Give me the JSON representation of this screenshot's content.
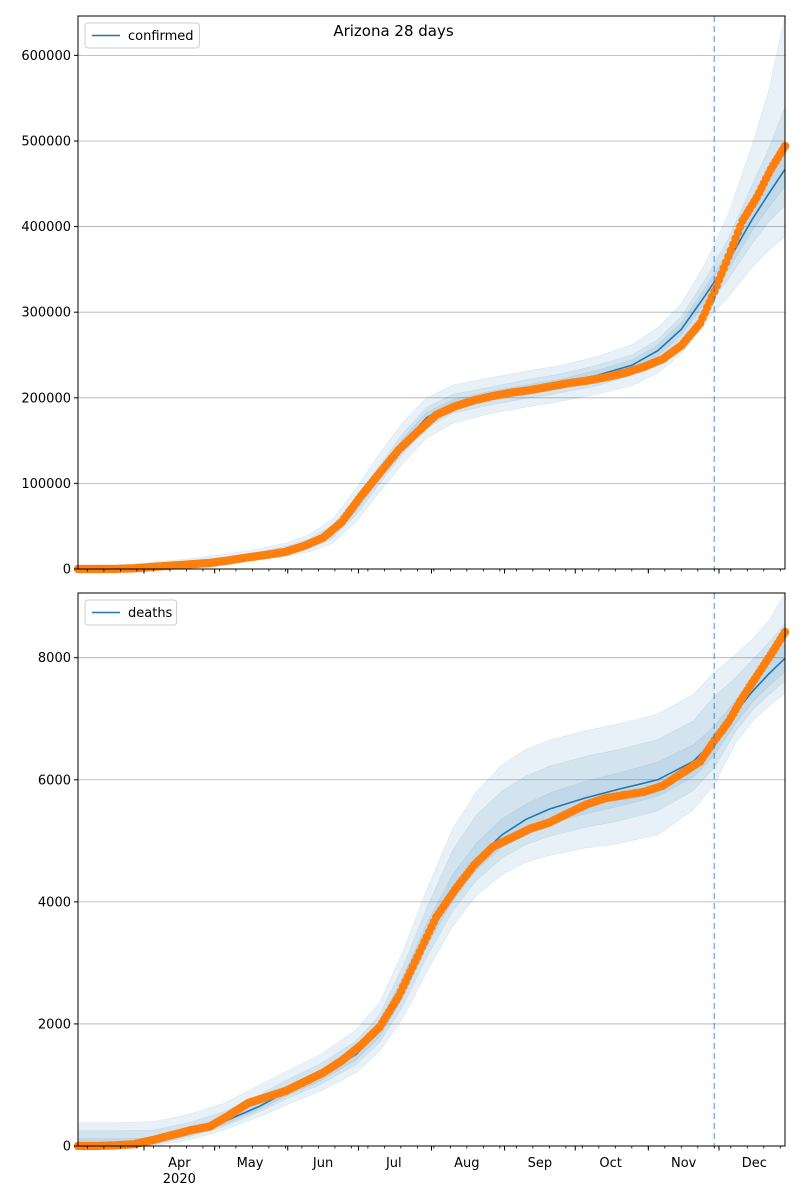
{
  "chart_data": [
    {
      "type": "line",
      "title": "Arizona 28 days",
      "xlabel": "",
      "ylabel": "",
      "x_range": [
        "2020-03-04",
        "2020-12-29"
      ],
      "ylim": [
        0,
        646000
      ],
      "yticks": [
        0,
        100000,
        200000,
        300000,
        400000,
        500000,
        600000
      ],
      "ytick_labels": [
        "0",
        "100000",
        "200000",
        "300000",
        "400000",
        "500000",
        "600000"
      ],
      "grid": "horizontal",
      "legend": {
        "placement": "top-left",
        "entries": [
          "confirmed"
        ]
      },
      "forecast_start": "2020-11-29",
      "model_x": [
        "2020-03-04",
        "2020-03-20",
        "2020-04-05",
        "2020-04-20",
        "2020-05-05",
        "2020-05-20",
        "2020-06-01",
        "2020-06-10",
        "2020-06-20",
        "2020-06-30",
        "2020-07-10",
        "2020-07-20",
        "2020-07-30",
        "2020-08-10",
        "2020-08-25",
        "2020-09-10",
        "2020-09-25",
        "2020-10-10",
        "2020-10-25",
        "2020-11-05",
        "2020-11-15",
        "2020-11-25",
        "2020-12-05",
        "2020-12-15",
        "2020-12-22",
        "2020-12-29"
      ],
      "model_y": [
        500,
        1000,
        3500,
        6500,
        11000,
        16500,
        22000,
        29000,
        43000,
        73000,
        110000,
        147000,
        177000,
        193000,
        202000,
        210000,
        217000,
        226000,
        238000,
        255000,
        280000,
        319000,
        360000,
        408000,
        438000,
        467000
      ],
      "bands": [
        {
          "name": "90%",
          "lower": [
            0,
            0,
            500,
            2500,
            6000,
            11000,
            15000,
            20000,
            30000,
            55000,
            90000,
            124000,
            153000,
            170000,
            181000,
            189000,
            196000,
            204000,
            214000,
            229000,
            251000,
            287000,
            318000,
            352000,
            372000,
            388000
          ],
          "upper": [
            3500,
            4500,
            8000,
            12000,
            17000,
            23500,
            31000,
            40000,
            58000,
            94000,
            135000,
            172000,
            200000,
            215000,
            223000,
            231000,
            238000,
            248000,
            262000,
            282000,
            310000,
            356000,
            415000,
            495000,
            558000,
            646000
          ]
        },
        {
          "name": "75%",
          "lower": [
            0,
            200,
            1500,
            4000,
            8000,
            13500,
            18000,
            24000,
            36000,
            63000,
            100000,
            135000,
            165000,
            182000,
            191000,
            199000,
            206000,
            214000,
            226000,
            242000,
            266000,
            303000,
            339000,
            380000,
            405000,
            425000
          ],
          "upper": [
            2500,
            3000,
            6000,
            9500,
            14000,
            20000,
            27000,
            35000,
            51000,
            84000,
            121000,
            159000,
            189000,
            204000,
            212000,
            221000,
            228000,
            238000,
            250000,
            268000,
            295000,
            338000,
            386000,
            448000,
            490000,
            540000
          ]
        },
        {
          "name": "50%",
          "lower": [
            100,
            600,
            2500,
            5200,
            9500,
            15000,
            20000,
            26500,
            39500,
            68000,
            105000,
            141000,
            171000,
            188000,
            197000,
            205000,
            212000,
            221000,
            233000,
            249000,
            273000,
            311000,
            350000,
            395000,
            422000,
            447000
          ],
          "upper": [
            1500,
            1800,
            4800,
            8000,
            12500,
            18000,
            24500,
            32000,
            47000,
            78000,
            115000,
            153000,
            183000,
            198000,
            207000,
            215000,
            222000,
            232000,
            244000,
            262000,
            288000,
            328000,
            372000,
            425000,
            458000,
            493000
          ]
        }
      ],
      "observed": {
        "x": [
          "2020-03-04",
          "2020-03-12",
          "2020-03-20",
          "2020-03-28",
          "2020-04-05",
          "2020-04-13",
          "2020-04-21",
          "2020-04-29",
          "2020-05-07",
          "2020-05-15",
          "2020-05-23",
          "2020-05-31",
          "2020-06-08",
          "2020-06-16",
          "2020-06-24",
          "2020-07-02",
          "2020-07-10",
          "2020-07-18",
          "2020-07-26",
          "2020-08-03",
          "2020-08-11",
          "2020-08-19",
          "2020-08-27",
          "2020-09-04",
          "2020-09-12",
          "2020-09-20",
          "2020-09-28",
          "2020-10-06",
          "2020-10-14",
          "2020-10-22",
          "2020-10-30",
          "2020-11-07",
          "2020-11-15",
          "2020-11-23",
          "2020-11-29",
          "2020-12-05",
          "2020-12-11",
          "2020-12-17",
          "2020-12-23",
          "2020-12-29"
        ],
        "y": [
          0,
          20,
          150,
          800,
          2500,
          4000,
          5500,
          7000,
          10000,
          13500,
          16500,
          20000,
          27000,
          36500,
          55000,
          85000,
          112000,
          139000,
          160000,
          180000,
          190000,
          197000,
          202000,
          206000,
          209000,
          213000,
          217000,
          220000,
          224000,
          229000,
          236000,
          245000,
          261000,
          287000,
          324000,
          365000,
          407000,
          434000,
          467000,
          494000
        ]
      }
    },
    {
      "type": "line",
      "title": "",
      "xlabel": "",
      "ylabel": "",
      "x_range": [
        "2020-03-04",
        "2020-12-29"
      ],
      "ylim": [
        0,
        9060
      ],
      "yticks": [
        0,
        2000,
        4000,
        6000,
        8000
      ],
      "ytick_labels": [
        "0",
        "2000",
        "4000",
        "6000",
        "8000"
      ],
      "xticks": [
        "2020-04-01",
        "2020-05-01",
        "2020-06-01",
        "2020-07-01",
        "2020-08-01",
        "2020-09-01",
        "2020-10-01",
        "2020-11-01",
        "2020-12-01"
      ],
      "xtick_labels": [
        "Apr",
        "May",
        "Jun",
        "Jul",
        "Aug",
        "Sep",
        "Oct",
        "Nov",
        "Dec"
      ],
      "xtick_year_label": "2020",
      "grid": "horizontal",
      "legend": {
        "placement": "top-left",
        "entries": [
          "deaths"
        ]
      },
      "forecast_start": "2020-11-29",
      "model_x": [
        "2020-03-04",
        "2020-03-20",
        "2020-04-05",
        "2020-04-20",
        "2020-05-05",
        "2020-05-20",
        "2020-06-01",
        "2020-06-15",
        "2020-06-30",
        "2020-07-10",
        "2020-07-20",
        "2020-07-30",
        "2020-08-10",
        "2020-08-20",
        "2020-08-31",
        "2020-09-10",
        "2020-09-20",
        "2020-10-05",
        "2020-10-20",
        "2020-11-05",
        "2020-11-20",
        "2020-11-29",
        "2020-12-08",
        "2020-12-15",
        "2020-12-22",
        "2020-12-29"
      ],
      "model_y": [
        0,
        0,
        70,
        230,
        400,
        650,
        900,
        1150,
        1500,
        1900,
        2600,
        3450,
        4200,
        4700,
        5100,
        5350,
        5520,
        5700,
        5850,
        6000,
        6300,
        6640,
        7100,
        7440,
        7730,
        7990
      ],
      "bands": [
        {
          "name": "90%",
          "lower": [
            0,
            0,
            0,
            100,
            260,
            480,
            680,
            900,
            1200,
            1550,
            2100,
            2850,
            3600,
            4100,
            4450,
            4650,
            4760,
            4880,
            4960,
            5100,
            5500,
            5920,
            6600,
            6950,
            7200,
            7420
          ],
          "upper": [
            380,
            380,
            400,
            520,
            700,
            1000,
            1230,
            1500,
            1900,
            2350,
            3200,
            4200,
            5200,
            5800,
            6250,
            6500,
            6650,
            6800,
            6920,
            7080,
            7400,
            7760,
            8050,
            8300,
            8600,
            9060
          ]
        },
        {
          "name": "75%",
          "lower": [
            0,
            0,
            20,
            150,
            320,
            560,
            780,
            1010,
            1330,
            1700,
            2300,
            3100,
            3850,
            4350,
            4720,
            4940,
            5070,
            5220,
            5330,
            5490,
            5820,
            6200,
            6790,
            7130,
            7390,
            7620
          ],
          "upper": [
            250,
            250,
            260,
            380,
            560,
            840,
            1090,
            1350,
            1720,
            2150,
            2950,
            3900,
            4850,
            5420,
            5820,
            6060,
            6220,
            6380,
            6500,
            6660,
            6960,
            7370,
            7670,
            7960,
            8240,
            8560
          ]
        },
        {
          "name": "50%",
          "lower": [
            0,
            0,
            40,
            180,
            350,
            600,
            830,
            1070,
            1410,
            1790,
            2440,
            3270,
            4020,
            4520,
            4900,
            5130,
            5280,
            5440,
            5570,
            5730,
            6040,
            6400,
            6920,
            7260,
            7530,
            7770
          ],
          "upper": [
            120,
            120,
            130,
            290,
            460,
            720,
            980,
            1240,
            1600,
            2020,
            2780,
            3650,
            4450,
            4960,
            5360,
            5600,
            5780,
            5970,
            6120,
            6290,
            6570,
            6880,
            7300,
            7640,
            7940,
            8240
          ]
        }
      ],
      "observed": {
        "x": [
          "2020-03-04",
          "2020-03-12",
          "2020-03-20",
          "2020-03-28",
          "2020-04-05",
          "2020-04-13",
          "2020-04-21",
          "2020-04-29",
          "2020-05-07",
          "2020-05-15",
          "2020-05-23",
          "2020-05-31",
          "2020-06-08",
          "2020-06-16",
          "2020-06-24",
          "2020-07-02",
          "2020-07-10",
          "2020-07-18",
          "2020-07-26",
          "2020-08-03",
          "2020-08-11",
          "2020-08-19",
          "2020-08-27",
          "2020-09-04",
          "2020-09-12",
          "2020-09-20",
          "2020-09-28",
          "2020-10-06",
          "2020-10-14",
          "2020-10-22",
          "2020-10-30",
          "2020-11-07",
          "2020-11-15",
          "2020-11-23",
          "2020-11-29",
          "2020-12-05",
          "2020-12-11",
          "2020-12-17",
          "2020-12-23",
          "2020-12-29"
        ],
        "y": [
          0,
          0,
          10,
          30,
          100,
          180,
          260,
          320,
          500,
          700,
          800,
          900,
          1050,
          1200,
          1400,
          1650,
          1950,
          2450,
          3100,
          3750,
          4200,
          4600,
          4900,
          5050,
          5200,
          5300,
          5450,
          5600,
          5700,
          5750,
          5800,
          5900,
          6100,
          6300,
          6640,
          6950,
          7350,
          7700,
          8050,
          8420
        ]
      }
    }
  ]
}
